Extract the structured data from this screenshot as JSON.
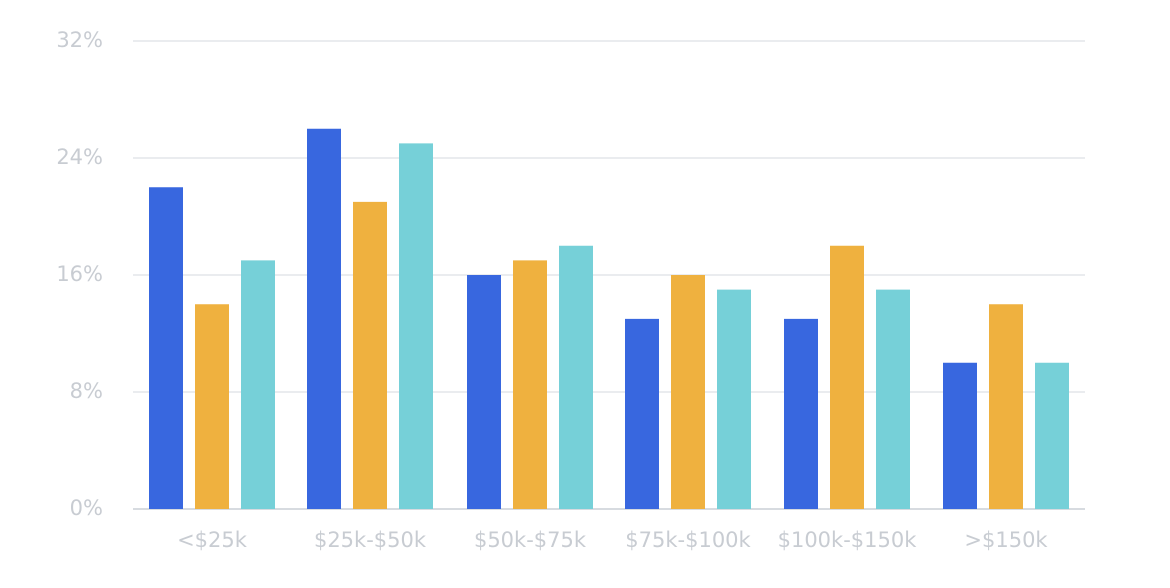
{
  "chart_data": {
    "type": "bar",
    "title": "",
    "xlabel": "",
    "ylabel": "",
    "categories": [
      "<$25k",
      "$25k-$50k",
      "$50k-$75k",
      "$75k-$100k",
      "$100k-$150k",
      ">$150k"
    ],
    "series": [
      {
        "color": "#3867df",
        "values": [
          22,
          26,
          16,
          13,
          13,
          10
        ]
      },
      {
        "color": "#efb13f",
        "values": [
          14,
          21,
          17,
          16,
          18,
          14
        ]
      },
      {
        "color": "#76d0d8",
        "values": [
          17,
          25,
          18,
          15,
          15,
          10
        ]
      }
    ],
    "ylim": [
      0,
      32
    ],
    "yticks": [
      0,
      8,
      16,
      24,
      32
    ],
    "ytick_labels": [
      "0%",
      "8%",
      "16%",
      "24%",
      "32%"
    ],
    "grid": true,
    "legend": "none"
  }
}
